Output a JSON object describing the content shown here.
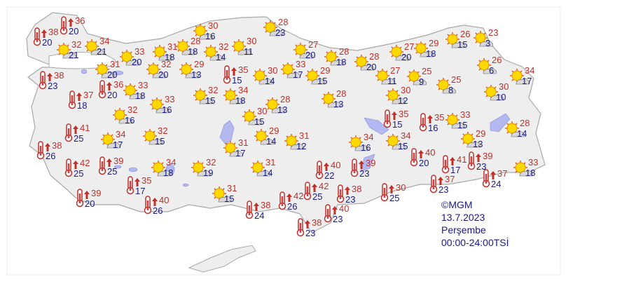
{
  "legend": {
    "copyright": "©MGM",
    "date": "13.7.2023",
    "day": "Perşembe",
    "period": "00:00-24:00TSİ"
  },
  "colors": {
    "land": "#eeeeee",
    "border": "#b8b8b8",
    "lake": "#b3b8f0",
    "max_temp": "#c0302a",
    "min_temp": "#1a1a80"
  },
  "icons": {
    "sun": "sunny-partly-cloudy-icon",
    "hot": "hot-thermometer-icon"
  },
  "stations": [
    {
      "icon": "hot",
      "max": "38",
      "min": "20"
    },
    {
      "icon": "hot",
      "max": "36",
      "min": "20"
    },
    {
      "icon": "sun",
      "max": "32",
      "min": "21"
    },
    {
      "icon": "sun",
      "max": "34",
      "min": "21"
    },
    {
      "icon": "sun",
      "max": "33",
      "min": "20"
    },
    {
      "icon": "sun",
      "max": "31",
      "min": "20"
    },
    {
      "icon": "sun",
      "max": "32",
      "min": "20"
    },
    {
      "icon": "sun",
      "max": "31",
      "min": "18"
    },
    {
      "icon": "sun",
      "max": "28",
      "min": "18"
    },
    {
      "icon": "sun",
      "max": "30",
      "min": "16"
    },
    {
      "icon": "sun",
      "max": "32",
      "min": "14"
    },
    {
      "icon": "sun",
      "max": "29",
      "min": "13"
    },
    {
      "icon": "hot",
      "max": "38",
      "min": "23"
    },
    {
      "icon": "hot",
      "max": "36",
      "min": "20"
    },
    {
      "icon": "hot",
      "max": "37",
      "min": "18"
    },
    {
      "icon": "sun",
      "max": "33",
      "min": "18"
    },
    {
      "icon": "sun",
      "max": "33",
      "min": "16"
    },
    {
      "icon": "sun",
      "max": "32",
      "min": "15"
    },
    {
      "icon": "hot",
      "max": "35",
      "min": "15"
    },
    {
      "icon": "sun",
      "max": "30",
      "min": "11"
    },
    {
      "icon": "sun",
      "max": "28",
      "min": "23"
    },
    {
      "icon": "sun",
      "max": "30",
      "min": "14"
    },
    {
      "icon": "sun",
      "max": "33",
      "min": "17"
    },
    {
      "icon": "sun",
      "max": "34",
      "min": "18"
    },
    {
      "icon": "sun",
      "max": "28",
      "min": "13"
    },
    {
      "icon": "sun",
      "max": "27",
      "min": "20"
    },
    {
      "icon": "sun",
      "max": "29",
      "min": "15"
    },
    {
      "icon": "sun",
      "max": "28",
      "min": "18"
    },
    {
      "icon": "sun",
      "max": "28",
      "min": "13"
    },
    {
      "icon": "sun",
      "max": "28",
      "min": "20"
    },
    {
      "icon": "sun",
      "max": "27",
      "min": "20"
    },
    {
      "icon": "sun",
      "max": "27",
      "min": "11"
    },
    {
      "icon": "sun",
      "max": "30",
      "min": "12"
    },
    {
      "icon": "sun",
      "max": "29",
      "min": "18"
    },
    {
      "icon": "sun",
      "max": "25",
      "min": "9"
    },
    {
      "icon": "sun",
      "max": "26",
      "min": "15"
    },
    {
      "icon": "sun",
      "max": "23",
      "min": "3"
    },
    {
      "icon": "sun",
      "max": "26",
      "min": "6"
    },
    {
      "icon": "sun",
      "max": "25",
      "min": "8"
    },
    {
      "icon": "sun",
      "max": "34",
      "min": "17"
    },
    {
      "icon": "sun",
      "max": "30",
      "min": "10"
    },
    {
      "icon": "sun",
      "max": "32",
      "min": "16"
    },
    {
      "icon": "hot",
      "max": "41",
      "min": "25"
    },
    {
      "icon": "sun",
      "max": "34",
      "min": "17"
    },
    {
      "icon": "sun",
      "max": "32",
      "min": "15"
    },
    {
      "icon": "hot",
      "max": "38",
      "min": "26"
    },
    {
      "icon": "hot",
      "max": "42",
      "min": "25"
    },
    {
      "icon": "hot",
      "max": "39",
      "min": "25"
    },
    {
      "icon": "sun",
      "max": "34",
      "min": "18"
    },
    {
      "icon": "hot",
      "max": "35",
      "min": "17"
    },
    {
      "icon": "sun",
      "max": "32",
      "min": "19"
    },
    {
      "icon": "hot",
      "max": "39",
      "min": "20"
    },
    {
      "icon": "hot",
      "max": "40",
      "min": "26"
    },
    {
      "icon": "sun",
      "max": "31",
      "min": "15"
    },
    {
      "icon": "sun",
      "max": "30",
      "min": "15"
    },
    {
      "icon": "sun",
      "max": "29",
      "min": "14"
    },
    {
      "icon": "sun",
      "max": "31",
      "min": "12"
    },
    {
      "icon": "sun",
      "max": "31",
      "min": "17"
    },
    {
      "icon": "sun",
      "max": "31",
      "min": "14"
    },
    {
      "icon": "hot",
      "max": "38",
      "min": "24"
    },
    {
      "icon": "hot",
      "max": "42",
      "min": "26"
    },
    {
      "icon": "hot",
      "max": "40",
      "min": "22"
    },
    {
      "icon": "hot",
      "max": "42",
      "min": "25"
    },
    {
      "icon": "hot",
      "max": "38",
      "min": "23"
    },
    {
      "icon": "hot",
      "max": "40",
      "min": "23"
    },
    {
      "icon": "hot",
      "max": "38",
      "min": "23"
    },
    {
      "icon": "hot",
      "max": "39",
      "min": "23"
    },
    {
      "icon": "hot",
      "max": "30",
      "min": "25"
    },
    {
      "icon": "sun",
      "max": "34",
      "min": "16"
    },
    {
      "icon": "sun",
      "max": "34",
      "min": "15"
    },
    {
      "icon": "hot",
      "max": "35",
      "min": "15"
    },
    {
      "icon": "hot",
      "max": "35",
      "min": "16"
    },
    {
      "icon": "sun",
      "max": "33",
      "min": "15"
    },
    {
      "icon": "sun",
      "max": "29",
      "min": "13"
    },
    {
      "icon": "sun",
      "max": "28",
      "min": "14"
    },
    {
      "icon": "hot",
      "max": "40",
      "min": "20"
    },
    {
      "icon": "hot",
      "max": "41",
      "min": "17"
    },
    {
      "icon": "hot",
      "max": "39",
      "min": "23"
    },
    {
      "icon": "hot",
      "max": "37",
      "min": "23"
    },
    {
      "icon": "hot",
      "max": "37",
      "min": "24"
    },
    {
      "icon": "sun",
      "max": "33",
      "min": "18"
    }
  ]
}
